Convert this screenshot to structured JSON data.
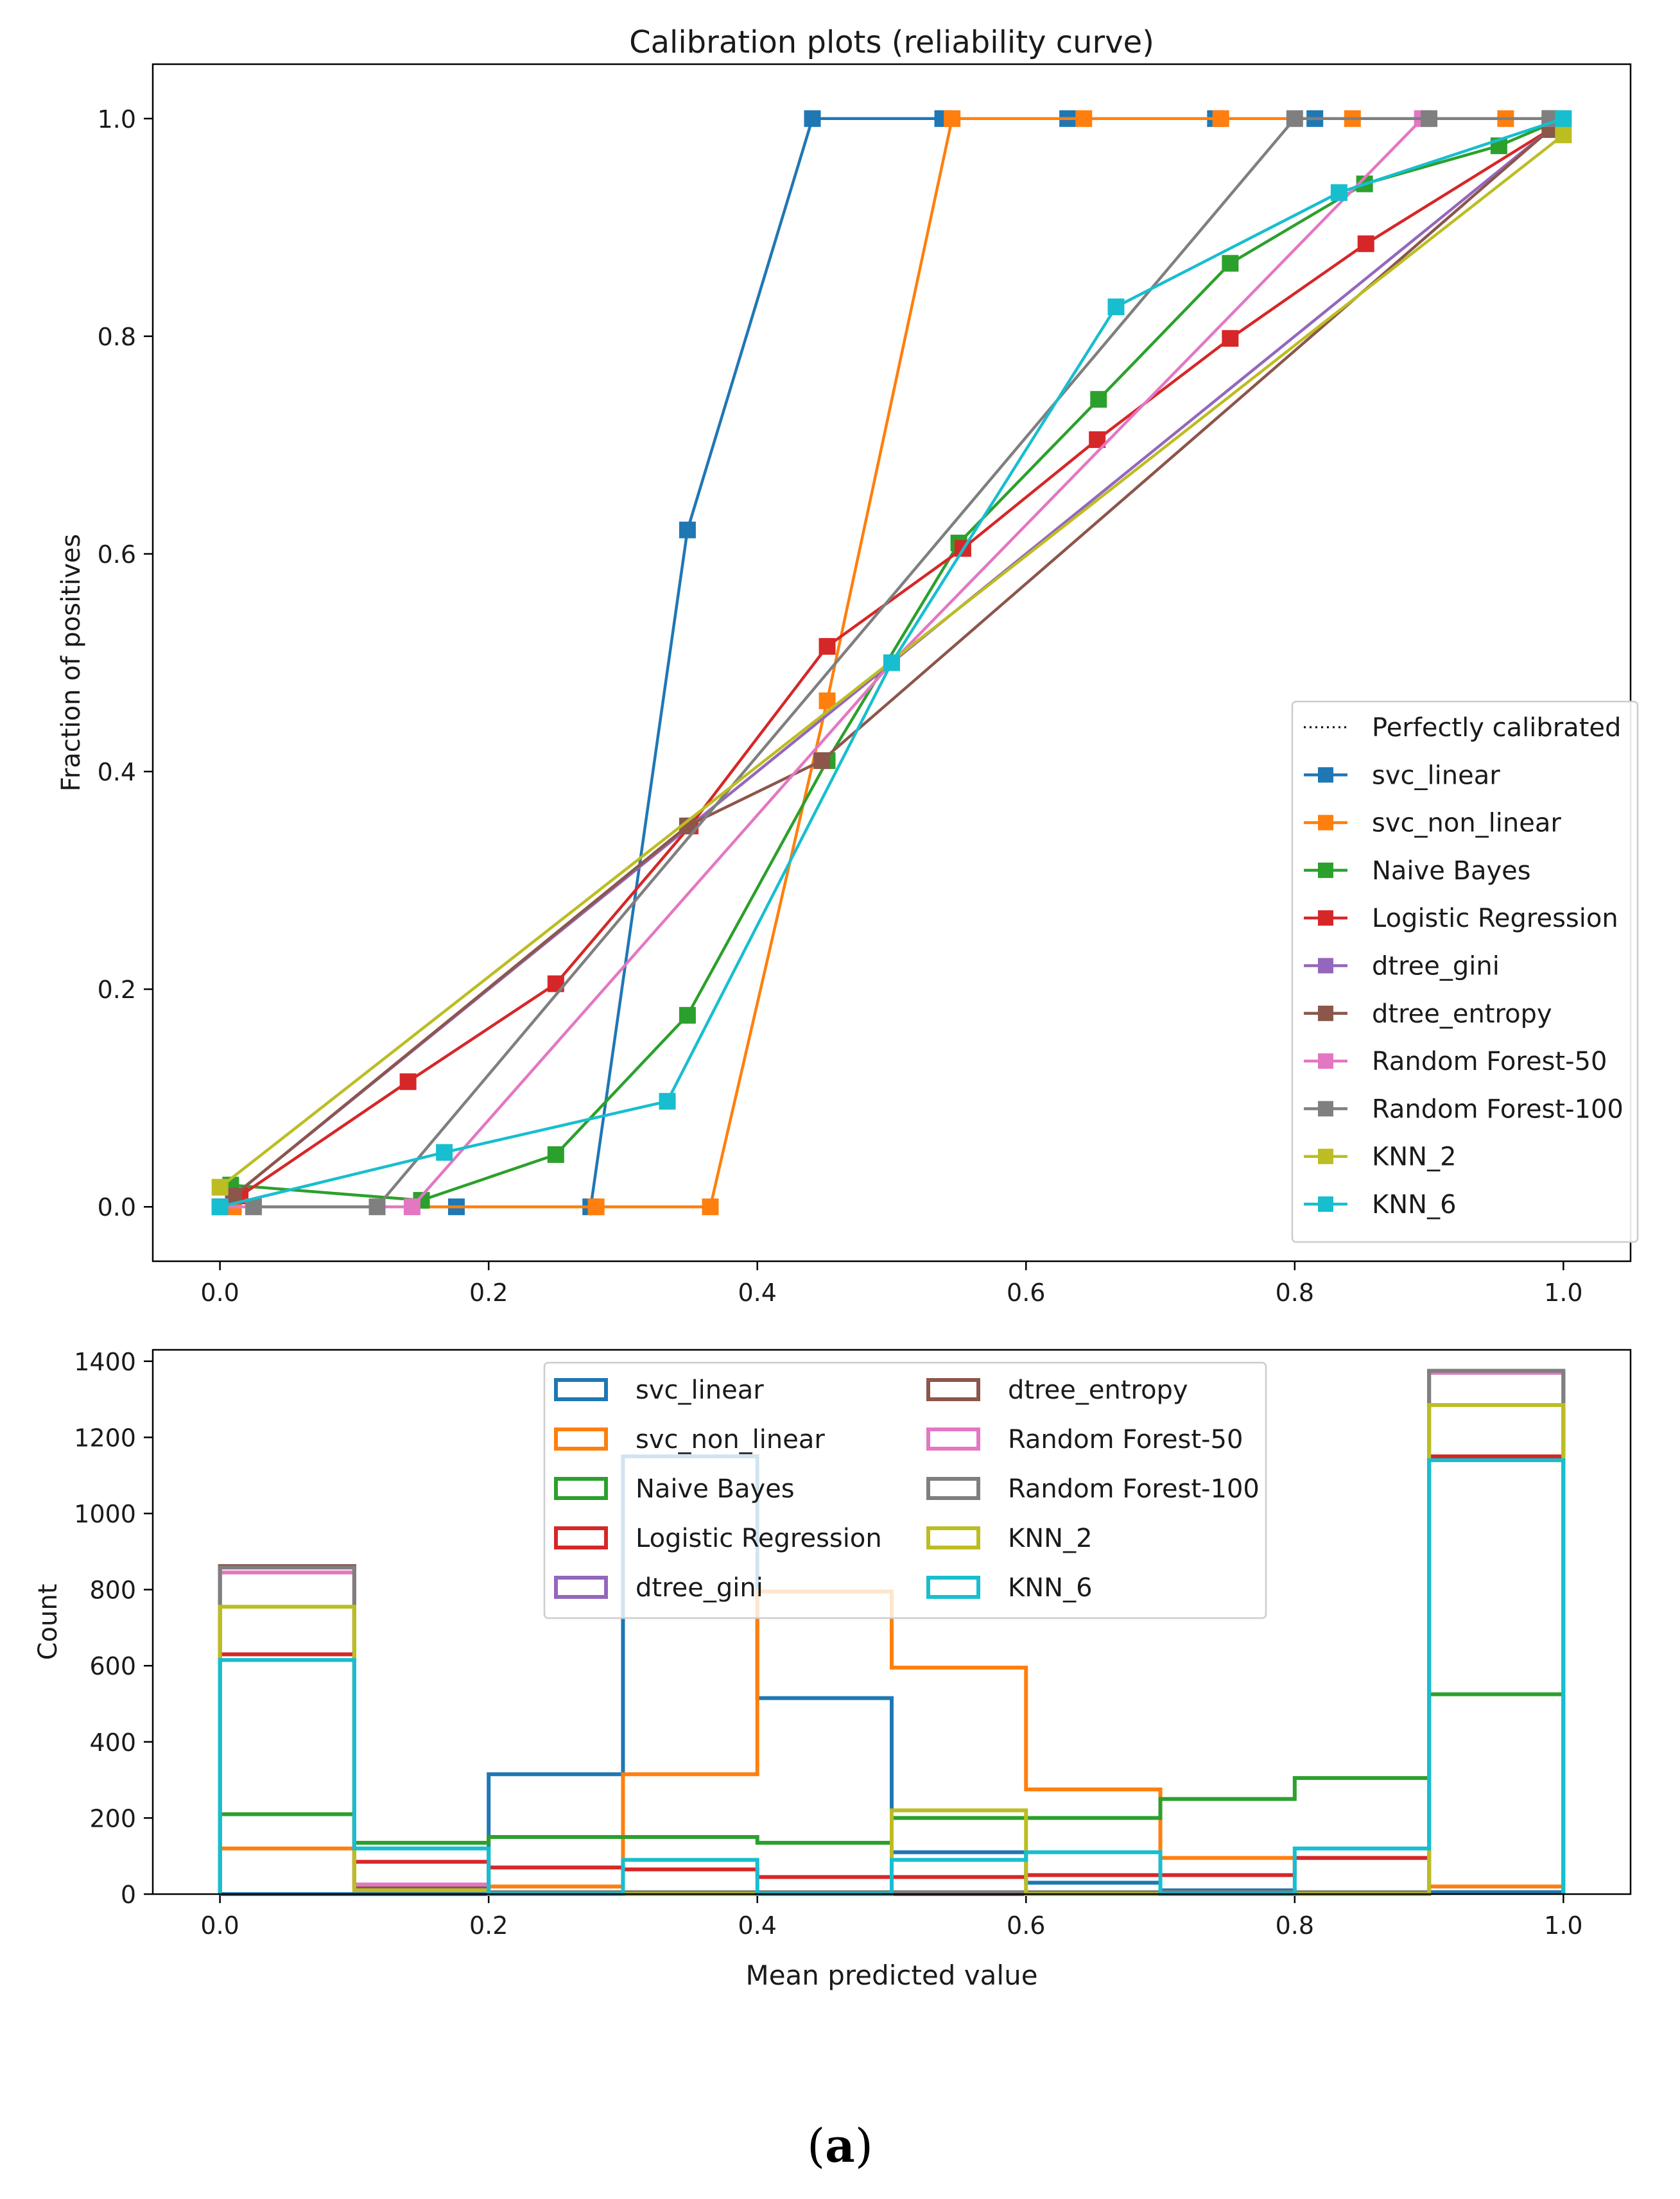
{
  "colors": {
    "svc_linear": "#1f77b4",
    "svc_non_linear": "#ff7f0e",
    "naive_bayes": "#2ca02c",
    "logistic_regression": "#d62728",
    "dtree_gini": "#9467bd",
    "dtree_entropy": "#8c564b",
    "rf50": "#e377c2",
    "rf100": "#7f7f7f",
    "knn2": "#bcbd22",
    "knn6": "#17becf"
  },
  "caption": {
    "open": "(",
    "letter": "a",
    "close": ")"
  },
  "chart_data": [
    {
      "type": "line",
      "title": "Calibration plots  (reliability curve)",
      "xlabel": "",
      "ylabel": "Fraction of positives",
      "xlim": [
        -0.05,
        1.05
      ],
      "ylim": [
        -0.05,
        1.05
      ],
      "xticks": [
        0.0,
        0.2,
        0.4,
        0.6,
        0.8,
        1.0
      ],
      "xtick_labels": [
        "0.0",
        "0.2",
        "0.4",
        "0.6",
        "0.8",
        "1.0"
      ],
      "yticks": [
        0.0,
        0.2,
        0.4,
        0.6,
        0.8,
        1.0
      ],
      "ytick_labels": [
        "0.0",
        "0.2",
        "0.4",
        "0.6",
        "0.8",
        "1.0"
      ],
      "legend_position": "lower-right",
      "reference": {
        "name": "Perfectly calibrated",
        "x": [
          0,
          1
        ],
        "y": [
          0,
          1
        ]
      },
      "series": [
        {
          "name": "svc_linear",
          "color": "#1f77b4",
          "x": [
            0.0,
            0.176,
            0.276,
            0.348,
            0.441,
            0.538,
            0.631,
            0.741,
            0.815,
            0.99
          ],
          "y": [
            0.0,
            0.0,
            0.0,
            0.622,
            1.0,
            1.0,
            1.0,
            1.0,
            1.0,
            1.0
          ]
        },
        {
          "name": "svc_non_linear",
          "color": "#ff7f0e",
          "x": [
            0.01,
            0.28,
            0.365,
            0.452,
            0.545,
            0.643,
            0.745,
            0.843,
            0.957,
            0.99
          ],
          "y": [
            0.0,
            0.0,
            0.0,
            0.465,
            1.0,
            1.0,
            1.0,
            1.0,
            1.0,
            1.0
          ]
        },
        {
          "name": "Naive Bayes",
          "color": "#2ca02c",
          "x": [
            0.008,
            0.15,
            0.25,
            0.348,
            0.452,
            0.55,
            0.654,
            0.752,
            0.852,
            0.952,
            0.99
          ],
          "y": [
            0.02,
            0.006,
            0.048,
            0.176,
            0.41,
            0.61,
            0.742,
            0.867,
            0.94,
            0.975,
            0.995
          ]
        },
        {
          "name": "Logistic Regression",
          "color": "#d62728",
          "x": [
            0.015,
            0.14,
            0.25,
            0.35,
            0.452,
            0.553,
            0.653,
            0.752,
            0.853,
            0.99
          ],
          "y": [
            0.01,
            0.115,
            0.205,
            0.35,
            0.515,
            0.605,
            0.705,
            0.798,
            0.885,
            0.99
          ]
        },
        {
          "name": "dtree_gini",
          "color": "#9467bd",
          "x": [
            0.01,
            0.99
          ],
          "y": [
            0.01,
            0.99
          ]
        },
        {
          "name": "dtree_entropy",
          "color": "#8c564b",
          "x": [
            0.01,
            0.348,
            0.448,
            0.99
          ],
          "y": [
            0.01,
            0.35,
            0.41,
            0.99
          ]
        },
        {
          "name": "Random Forest-50",
          "color": "#e377c2",
          "x": [
            0.0,
            0.143,
            0.5,
            0.895,
            0.99
          ],
          "y": [
            0.0,
            0.0,
            0.5,
            1.0,
            1.0
          ]
        },
        {
          "name": "Random Forest-100",
          "color": "#7f7f7f",
          "x": [
            0.025,
            0.117,
            0.8,
            0.9,
            0.99
          ],
          "y": [
            0.0,
            0.0,
            1.0,
            1.0,
            1.0
          ]
        },
        {
          "name": "KNN_2",
          "color": "#bcbd22",
          "x": [
            0.0,
            1.0
          ],
          "y": [
            0.018,
            0.985
          ]
        },
        {
          "name": "KNN_6",
          "color": "#17becf",
          "x": [
            0.0,
            0.167,
            0.333,
            0.5,
            0.667,
            0.833,
            1.0
          ],
          "y": [
            0.0,
            0.05,
            0.097,
            0.5,
            0.827,
            0.932,
            1.0
          ]
        }
      ]
    },
    {
      "type": "histogram",
      "title": "",
      "xlabel": "Mean predicted value",
      "ylabel": "Count",
      "xlim": [
        -0.05,
        1.05
      ],
      "ylim": [
        0,
        1430
      ],
      "xticks": [
        0.0,
        0.2,
        0.4,
        0.6,
        0.8,
        1.0
      ],
      "xtick_labels": [
        "0.0",
        "0.2",
        "0.4",
        "0.6",
        "0.8",
        "1.0"
      ],
      "yticks": [
        0,
        200,
        400,
        600,
        800,
        1000,
        1200,
        1400
      ],
      "ytick_labels": [
        "0",
        "200",
        "400",
        "600",
        "800",
        "1000",
        "1200",
        "1400"
      ],
      "bin_edges": [
        0.0,
        0.1,
        0.2,
        0.3,
        0.4,
        0.5,
        0.6,
        0.7,
        0.8,
        0.9,
        1.0
      ],
      "legend_position": "top-center",
      "legend_columns": 2,
      "series": [
        {
          "name": "svc_linear",
          "color": "#1f77b4",
          "values": [
            0,
            0,
            315,
            1150,
            515,
            110,
            30,
            10,
            5,
            5
          ]
        },
        {
          "name": "svc_non_linear",
          "color": "#ff7f0e",
          "values": [
            120,
            20,
            20,
            315,
            795,
            595,
            275,
            95,
            95,
            20
          ]
        },
        {
          "name": "Naive Bayes",
          "color": "#2ca02c",
          "values": [
            210,
            135,
            150,
            150,
            135,
            200,
            200,
            250,
            305,
            525
          ]
        },
        {
          "name": "Logistic Regression",
          "color": "#d62728",
          "values": [
            630,
            85,
            70,
            65,
            45,
            45,
            50,
            50,
            95,
            1150
          ]
        },
        {
          "name": "dtree_gini",
          "color": "#9467bd",
          "values": [
            860,
            25,
            0,
            0,
            0,
            0,
            0,
            0,
            0,
            1370
          ]
        },
        {
          "name": "dtree_entropy",
          "color": "#8c564b",
          "values": [
            862,
            20,
            0,
            0,
            0,
            0,
            0,
            0,
            0,
            1370
          ]
        },
        {
          "name": "Random Forest-50",
          "color": "#e377c2",
          "values": [
            845,
            25,
            5,
            5,
            5,
            5,
            5,
            5,
            5,
            1370
          ]
        },
        {
          "name": "Random Forest-100",
          "color": "#7f7f7f",
          "values": [
            858,
            10,
            5,
            5,
            5,
            5,
            5,
            5,
            5,
            1375
          ]
        },
        {
          "name": "KNN_2",
          "color": "#bcbd22",
          "values": [
            755,
            10,
            0,
            0,
            0,
            220,
            0,
            0,
            0,
            1285
          ]
        },
        {
          "name": "KNN_6",
          "color": "#17becf",
          "values": [
            615,
            120,
            0,
            90,
            0,
            90,
            110,
            0,
            120,
            1140
          ]
        }
      ]
    }
  ]
}
